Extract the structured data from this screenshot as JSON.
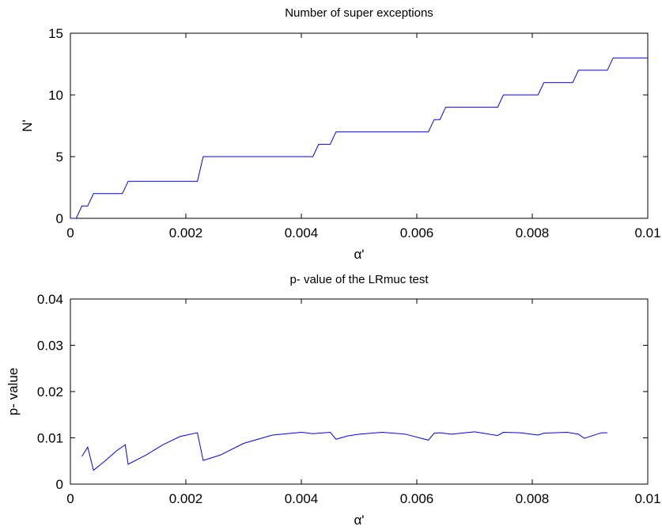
{
  "chart_data": [
    {
      "type": "line",
      "title": "Number of super exceptions",
      "xlabel": "α'",
      "ylabel": "N'",
      "xlim": [
        0,
        0.01
      ],
      "ylim": [
        0,
        15
      ],
      "xticks": [
        0,
        0.002,
        0.004,
        0.006,
        0.008,
        0.01
      ],
      "xtick_labels": [
        "0",
        "0.002",
        "0.004",
        "0.006",
        "0.008",
        "0.01"
      ],
      "yticks": [
        0,
        5,
        10,
        15
      ],
      "ytick_labels": [
        "0",
        "5",
        "10",
        "15"
      ],
      "grid": false,
      "series": [
        {
          "color": "#0000ff",
          "x": [
            0,
            0.0001,
            0.0002,
            0.0003,
            0.0004,
            0.0009,
            0.001,
            0.0022,
            0.0023,
            0.0042,
            0.0043,
            0.0045,
            0.0046,
            0.0062,
            0.0063,
            0.0064,
            0.0065,
            0.0074,
            0.0075,
            0.0081,
            0.0082,
            0.0087,
            0.0088,
            0.0093,
            0.0094,
            0.01
          ],
          "y": [
            0,
            0,
            1,
            1,
            2,
            2,
            3,
            3,
            5,
            5,
            6,
            6,
            7,
            7,
            8,
            8,
            9,
            9,
            10,
            10,
            11,
            11,
            12,
            12,
            13,
            13
          ]
        }
      ]
    },
    {
      "type": "line",
      "title": "p- value of the LRmuc test",
      "xlabel": "α'",
      "ylabel": "p- value",
      "xlim": [
        0,
        0.01
      ],
      "ylim": [
        0,
        0.04
      ],
      "xticks": [
        0,
        0.002,
        0.004,
        0.006,
        0.008,
        0.01
      ],
      "xtick_labels": [
        "0",
        "0.002",
        "0.004",
        "0.006",
        "0.008",
        "0.01"
      ],
      "yticks": [
        0,
        0.01,
        0.02,
        0.03,
        0.04
      ],
      "ytick_labels": [
        "0",
        "0.01",
        "0.02",
        "0.03",
        "0.04"
      ],
      "grid": false,
      "series": [
        {
          "color": "#0000ff",
          "x": [
            0.0002,
            0.0003,
            0.0004,
            0.0006,
            0.0008,
            0.00095,
            0.001,
            0.0013,
            0.0016,
            0.0019,
            0.0022,
            0.0023,
            0.0026,
            0.003,
            0.0035,
            0.004,
            0.0042,
            0.0045,
            0.0046,
            0.0048,
            0.005,
            0.0054,
            0.0058,
            0.0062,
            0.0063,
            0.0064,
            0.0066,
            0.007,
            0.0074,
            0.0075,
            0.0078,
            0.0081,
            0.0082,
            0.0086,
            0.0088,
            0.0089,
            0.0092,
            0.0093
          ],
          "y": [
            0.006,
            0.008,
            0.003,
            0.005,
            0.0072,
            0.0085,
            0.0043,
            0.0062,
            0.0085,
            0.0103,
            0.0111,
            0.0051,
            0.0063,
            0.0088,
            0.0106,
            0.0112,
            0.0109,
            0.0112,
            0.0097,
            0.0104,
            0.0108,
            0.0112,
            0.0108,
            0.0095,
            0.011,
            0.0111,
            0.0108,
            0.0113,
            0.0105,
            0.0112,
            0.0111,
            0.0106,
            0.011,
            0.0112,
            0.0108,
            0.0099,
            0.0111,
            0.0111
          ]
        }
      ]
    }
  ]
}
